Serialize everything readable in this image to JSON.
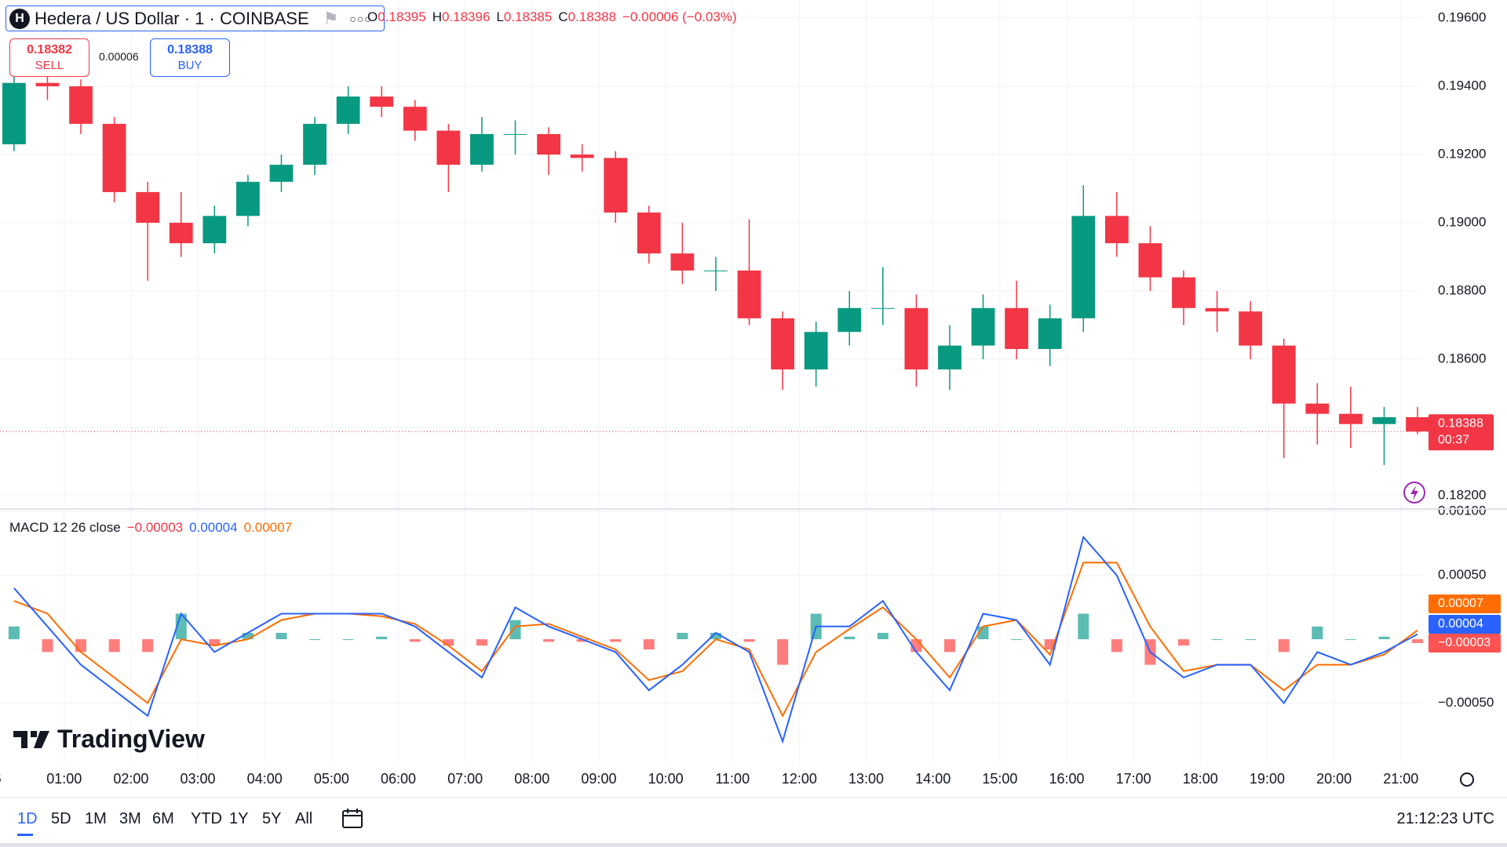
{
  "header": {
    "icon": "H",
    "symbol": "Hedera / US Dollar · 1 · COINBASE",
    "ohlc": [
      {
        "key": "O",
        "value": "0.18395"
      },
      {
        "key": "H",
        "value": "0.18396"
      },
      {
        "key": "L",
        "value": "0.18385"
      },
      {
        "key": "C",
        "value": "0.18388"
      }
    ],
    "change": "−0.00006 (−0.03%)"
  },
  "trade": {
    "sell_price": "0.18382",
    "sell": "SELL",
    "spread": "0.00006",
    "buy_price": "0.18388",
    "buy": "BUY"
  },
  "chart_data": [
    {
      "type": "candlestick",
      "up_color": "#089981",
      "down_color": "#f23645",
      "grid": true,
      "x": [
        0.25,
        0.75,
        1.25,
        1.75,
        2.25,
        2.75,
        3.25,
        3.75,
        4.25,
        4.75,
        5.25,
        5.75,
        6.25,
        6.75,
        7.25,
        7.75,
        8.25,
        8.75,
        9.25,
        9.75,
        10.25,
        10.75,
        11.25,
        11.75,
        12.25,
        12.75,
        13.25,
        13.75,
        14.25,
        14.75,
        15.25,
        15.75,
        16.25,
        16.75,
        17.25,
        17.75,
        18.25,
        18.75,
        19.25,
        19.75,
        20.25,
        20.75,
        21.25
      ],
      "open": [
        0.1923,
        0.1941,
        0.194,
        0.1929,
        0.1909,
        0.19,
        0.1894,
        0.1902,
        0.1912,
        0.1917,
        0.1929,
        0.1937,
        0.1934,
        0.1927,
        0.1917,
        0.1926,
        0.1926,
        0.192,
        0.1919,
        0.1903,
        0.1891,
        0.1886,
        0.1886,
        0.1872,
        0.1857,
        0.1868,
        0.1875,
        0.1875,
        0.1857,
        0.1864,
        0.1875,
        0.1863,
        0.1872,
        0.1902,
        0.1894,
        0.1884,
        0.1875,
        0.1874,
        0.1864,
        0.1847,
        0.1844,
        0.1841,
        0.1843
      ],
      "high": [
        0.1944,
        0.1945,
        0.1942,
        0.1931,
        0.1912,
        0.1909,
        0.1905,
        0.1914,
        0.192,
        0.1931,
        0.194,
        0.194,
        0.1936,
        0.1929,
        0.1931,
        0.193,
        0.1928,
        0.1923,
        0.1921,
        0.1905,
        0.19,
        0.189,
        0.1901,
        0.1874,
        0.1871,
        0.188,
        0.1887,
        0.1879,
        0.187,
        0.1879,
        0.1883,
        0.1876,
        0.1911,
        0.1909,
        0.1899,
        0.1886,
        0.188,
        0.1877,
        0.1866,
        0.1853,
        0.1852,
        0.1846,
        0.1846
      ],
      "low": [
        0.1921,
        0.1936,
        0.1926,
        0.1906,
        0.1883,
        0.189,
        0.1891,
        0.1899,
        0.1909,
        0.1914,
        0.1926,
        0.1931,
        0.1924,
        0.1909,
        0.1915,
        0.192,
        0.1914,
        0.1915,
        0.19,
        0.1888,
        0.1882,
        0.188,
        0.187,
        0.1851,
        0.1852,
        0.1864,
        0.187,
        0.1852,
        0.1851,
        0.186,
        0.186,
        0.1858,
        0.1868,
        0.189,
        0.188,
        0.187,
        0.1868,
        0.186,
        0.1831,
        0.1835,
        0.1834,
        0.1829,
        0.1838
      ],
      "close": [
        0.1941,
        0.194,
        0.1929,
        0.1909,
        0.19,
        0.1894,
        0.1902,
        0.1912,
        0.1917,
        0.1929,
        0.1937,
        0.1934,
        0.1927,
        0.1917,
        0.1926,
        0.1926,
        0.192,
        0.1919,
        0.1903,
        0.1891,
        0.1886,
        0.1886,
        0.1872,
        0.1857,
        0.1868,
        0.1875,
        0.1875,
        0.1857,
        0.1864,
        0.1875,
        0.1863,
        0.1872,
        0.1902,
        0.1894,
        0.1884,
        0.1875,
        0.1874,
        0.1864,
        0.1847,
        0.1844,
        0.1841,
        0.1843,
        0.18388
      ],
      "last_price_label": "0.18388",
      "countdown": "00:37",
      "xlim": [
        0.04,
        21.32
      ],
      "xticks": [
        {
          "value": 0,
          "label": "6"
        },
        {
          "value": 1,
          "label": "01:00"
        },
        {
          "value": 2,
          "label": "02:00"
        },
        {
          "value": 3,
          "label": "03:00"
        },
        {
          "value": 4,
          "label": "04:00"
        },
        {
          "value": 5,
          "label": "05:00"
        },
        {
          "value": 6,
          "label": "06:00"
        },
        {
          "value": 7,
          "label": "07:00"
        },
        {
          "value": 8,
          "label": "08:00"
        },
        {
          "value": 9,
          "label": "09:00"
        },
        {
          "value": 10,
          "label": "10:00"
        },
        {
          "value": 11,
          "label": "11:00"
        },
        {
          "value": 12,
          "label": "12:00"
        },
        {
          "value": 13,
          "label": "13:00"
        },
        {
          "value": 14,
          "label": "14:00"
        },
        {
          "value": 15,
          "label": "15:00"
        },
        {
          "value": 16,
          "label": "16:00"
        },
        {
          "value": 17,
          "label": "17:00"
        },
        {
          "value": 18,
          "label": "18:00"
        },
        {
          "value": 19,
          "label": "19:00"
        },
        {
          "value": 20,
          "label": "20:00"
        },
        {
          "value": 21,
          "label": "21:00"
        }
      ],
      "ylim": [
        0.18161,
        0.19653
      ],
      "yticks": [
        {
          "value": 0.182,
          "label": "0.18200"
        },
        {
          "value": 0.184,
          "label": "0.18400"
        },
        {
          "value": 0.186,
          "label": "0.18600"
        },
        {
          "value": 0.188,
          "label": "0.18800"
        },
        {
          "value": 0.19,
          "label": "0.19000"
        },
        {
          "value": 0.192,
          "label": "0.19200"
        },
        {
          "value": 0.194,
          "label": "0.19400"
        },
        {
          "value": 0.196,
          "label": "0.19600"
        }
      ]
    },
    {
      "type": "macd",
      "title": "MACD 12 26 close",
      "grid": true,
      "series": [
        {
          "name": "Histogram",
          "up_color": "#26a69a",
          "down_color": "#ff5252",
          "last_label": "−0.00003",
          "values": [
            0.0001,
            -0.0001,
            -0.0001,
            -0.0001,
            -0.0001,
            0.0002,
            -5e-05,
            5e-05,
            5e-05,
            0,
            0,
            2e-05,
            -2e-05,
            -5e-05,
            -5e-05,
            0.00015,
            -2e-05,
            -2e-05,
            -2e-05,
            -8e-05,
            5e-05,
            5e-05,
            -2e-05,
            -0.0002,
            0.0002,
            2e-05,
            5e-05,
            -0.0001,
            -0.0001,
            0.0001,
            0,
            -8e-05,
            0.0002,
            -0.0001,
            -0.0002,
            -5e-05,
            0,
            0,
            -0.0001,
            0.0001,
            0,
            2e-05,
            -3e-05
          ]
        },
        {
          "name": "MACD",
          "color": "#2962ff",
          "last_label": "0.00004",
          "values": [
            0.0004,
            0.0001,
            -0.0002,
            -0.0004,
            -0.0006,
            0.0002,
            -0.0001,
            5e-05,
            0.0002,
            0.0002,
            0.0002,
            0.0002,
            0.0001,
            -0.0001,
            -0.0003,
            0.00025,
            0.0001,
            0,
            -0.0001,
            -0.0004,
            -0.0002,
            5e-05,
            -0.0001,
            -0.0008,
            0.0001,
            0.0001,
            0.0003,
            -0.0001,
            -0.0004,
            0.0002,
            0.00015,
            -0.0002,
            0.0008,
            0.0005,
            -0.0001,
            -0.0003,
            -0.0002,
            -0.0002,
            -0.0005,
            -0.0001,
            -0.0002,
            -0.0001,
            4e-05
          ]
        },
        {
          "name": "Signal",
          "color": "#ff6d00",
          "last_label": "0.00007",
          "values": [
            0.0003,
            0.0002,
            -0.0001,
            -0.0003,
            -0.0005,
            0,
            -5e-05,
            0,
            0.00015,
            0.0002,
            0.0002,
            0.00018,
            0.00012,
            -5e-05,
            -0.00025,
            0.0001,
            0.00012,
            2e-05,
            -8e-05,
            -0.00032,
            -0.00025,
            0,
            -8e-05,
            -0.0006,
            -0.0001,
            8e-05,
            0.00025,
            0,
            -0.0003,
            0.0001,
            0.00015,
            -0.00012,
            0.0006,
            0.0006,
            0.0001,
            -0.00025,
            -0.0002,
            -0.0002,
            -0.0004,
            -0.0002,
            -0.0002,
            -0.00012,
            7e-05
          ]
        }
      ],
      "ylim": [
        -0.00097,
        0.00102
      ],
      "yticks": [
        {
          "value": -0.0005,
          "label": "−0.00050"
        },
        {
          "value": 0.0005,
          "label": "0.00050"
        },
        {
          "value": 0.001,
          "label": "0.00100"
        }
      ]
    }
  ],
  "branding": "TradingView",
  "toolbar": {
    "ranges": [
      "1D",
      "5D",
      "1M",
      "3M",
      "6M",
      "YTD",
      "1Y",
      "5Y",
      "All"
    ],
    "clock": "21:12:23 UTC"
  }
}
